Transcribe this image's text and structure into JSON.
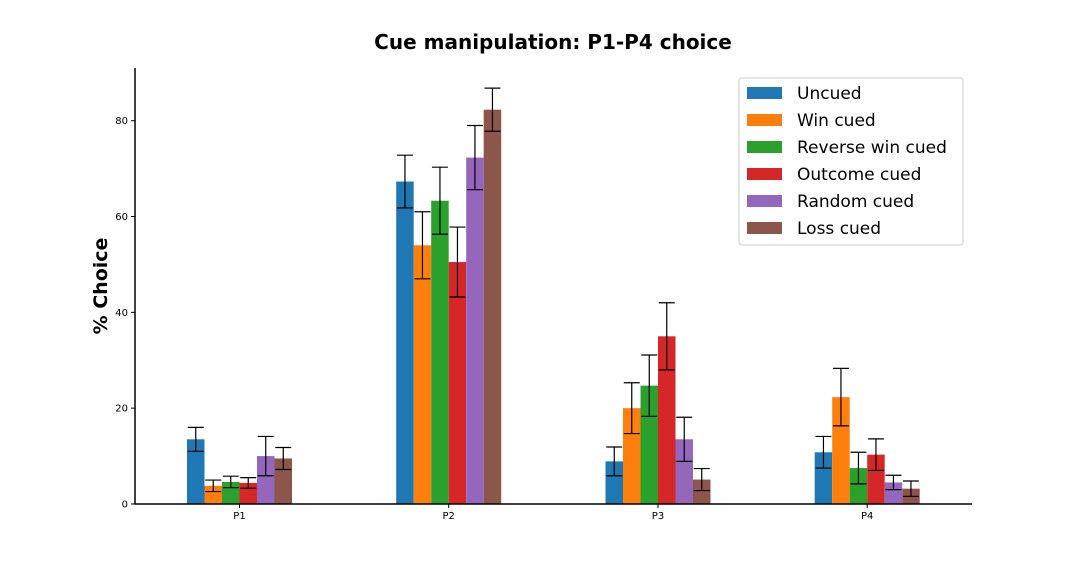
{
  "chart_data": {
    "type": "bar",
    "title": "Cue manipulation: P1-P4 choice",
    "xlabel": "",
    "ylabel": "% Choice",
    "categories": [
      "P1",
      "P2",
      "P3",
      "P4"
    ],
    "ylim": [
      0,
      91
    ],
    "yticks": [
      0,
      20,
      40,
      60,
      80
    ],
    "grid": false,
    "legend_position": "top-right",
    "series": [
      {
        "name": "Uncued",
        "color": "#1f77b4",
        "values": [
          13.5,
          67.3,
          8.9,
          10.8
        ],
        "errors": [
          2.5,
          5.5,
          3.0,
          3.3
        ]
      },
      {
        "name": "Win cued",
        "color": "#ff7f0e",
        "values": [
          3.8,
          54.0,
          20.0,
          22.3
        ],
        "errors": [
          1.2,
          7.0,
          5.3,
          6.0
        ]
      },
      {
        "name": "Reverse win cued",
        "color": "#2ca02c",
        "values": [
          4.6,
          63.3,
          24.7,
          7.5
        ],
        "errors": [
          1.2,
          7.0,
          6.4,
          3.3
        ]
      },
      {
        "name": "Outcome cued",
        "color": "#d62728",
        "values": [
          4.4,
          50.5,
          35.0,
          10.3
        ],
        "errors": [
          1.1,
          7.3,
          7.0,
          3.3
        ]
      },
      {
        "name": "Random cued",
        "color": "#9467bd",
        "values": [
          10.0,
          72.3,
          13.5,
          4.5
        ],
        "errors": [
          4.1,
          6.7,
          4.6,
          1.5
        ]
      },
      {
        "name": "Loss cued",
        "color": "#8c564b",
        "values": [
          9.5,
          82.3,
          5.1,
          3.2
        ],
        "errors": [
          2.3,
          4.5,
          2.3,
          1.6
        ]
      }
    ]
  }
}
